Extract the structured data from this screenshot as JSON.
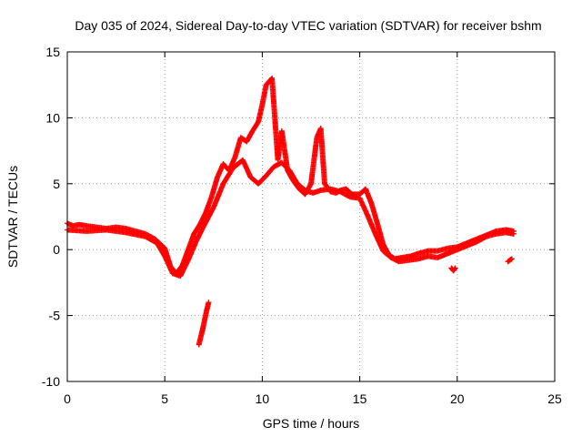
{
  "chart_data": {
    "type": "scatter",
    "title": "Day 035 of 2024, Sidereal Day-to-day VTEC variation (SDTVAR) for receiver bshm",
    "xlabel": "GPS time / hours",
    "ylabel": "SDTVAR / TECUs",
    "xlim": [
      0,
      25
    ],
    "ylim": [
      -10,
      15
    ],
    "xticks": [
      0,
      5,
      10,
      15,
      20,
      25
    ],
    "yticks": [
      -10,
      -5,
      0,
      5,
      10,
      15
    ],
    "grid": true,
    "marker": "+",
    "color": "#ff0000",
    "series": [
      {
        "name": "main",
        "x": [
          0.0,
          0.3,
          0.6,
          1.0,
          1.5,
          2.0,
          2.5,
          3.0,
          3.5,
          4.0,
          4.5,
          5.0,
          5.3,
          5.6,
          5.9,
          6.2,
          6.5,
          6.8,
          7.1,
          7.4,
          7.7,
          8.0,
          8.3,
          8.6,
          8.9,
          9.2,
          9.5,
          9.8,
          10.0,
          10.2,
          10.5,
          10.8,
          11.0,
          11.3,
          11.6,
          11.9,
          12.2,
          12.5,
          12.8,
          13.0,
          13.2,
          13.5,
          13.8,
          14.0,
          14.3,
          14.6,
          15.0,
          15.3,
          15.6,
          15.9,
          16.2,
          16.5,
          16.8,
          17.2,
          17.6,
          18.0,
          18.5,
          19.0,
          19.5,
          20.0,
          20.5,
          21.0,
          21.5,
          22.0,
          22.5,
          22.9
        ],
        "y": [
          2.0,
          1.8,
          1.9,
          1.8,
          1.7,
          1.6,
          1.7,
          1.6,
          1.4,
          1.2,
          0.8,
          0.1,
          -1.3,
          -1.8,
          -1.2,
          0.0,
          1.2,
          1.9,
          2.8,
          4.0,
          5.5,
          6.5,
          6.0,
          7.0,
          8.5,
          8.2,
          9.0,
          9.7,
          11.0,
          12.5,
          13.0,
          6.8,
          9.0,
          6.0,
          5.2,
          4.6,
          4.2,
          5.0,
          8.5,
          9.2,
          5.0,
          4.4,
          4.3,
          4.5,
          4.6,
          4.2,
          4.2,
          4.6,
          3.5,
          2.0,
          0.4,
          -0.4,
          -0.7,
          -0.6,
          -0.5,
          -0.3,
          -0.1,
          -0.1,
          0.1,
          0.2,
          0.5,
          0.8,
          1.1,
          1.4,
          1.5,
          1.4
        ]
      },
      {
        "name": "lower-band",
        "x": [
          0.0,
          1.0,
          2.0,
          3.0,
          4.0,
          4.6,
          5.0,
          5.4,
          5.8,
          6.2,
          6.6,
          7.0,
          7.5,
          8.0,
          8.5,
          9.0,
          9.4,
          9.8,
          10.2,
          10.6,
          11.0,
          11.4,
          11.8,
          12.2,
          12.6,
          13.0,
          13.5,
          14.0,
          14.5,
          15.0,
          15.4,
          15.8,
          16.2,
          16.6,
          17.0,
          17.5,
          18.0,
          18.5,
          19.0,
          19.5,
          20.0,
          20.5,
          21.0,
          21.5,
          22.0,
          22.5,
          22.9
        ],
        "y": [
          1.5,
          1.4,
          1.5,
          1.3,
          1.0,
          0.5,
          -0.5,
          -1.8,
          -2.0,
          -0.8,
          0.6,
          1.8,
          3.2,
          5.0,
          6.2,
          6.8,
          5.5,
          5.0,
          5.6,
          6.3,
          6.6,
          6.0,
          5.0,
          4.5,
          4.3,
          4.5,
          4.6,
          4.4,
          4.0,
          3.9,
          2.6,
          1.2,
          -0.1,
          -0.6,
          -0.9,
          -0.8,
          -0.7,
          -0.5,
          -0.6,
          -0.3,
          0.0,
          0.3,
          0.6,
          1.0,
          1.2,
          1.3,
          1.2
        ]
      },
      {
        "name": "isolated-drop",
        "x": [
          6.75,
          6.85,
          6.95,
          7.05,
          7.15,
          7.25
        ],
        "y": [
          -7.2,
          -6.6,
          -6.0,
          -5.3,
          -4.6,
          -4.0
        ]
      },
      {
        "name": "isolated-dip",
        "x": [
          19.7,
          19.8,
          19.9
        ],
        "y": [
          -1.4,
          -1.6,
          -1.4
        ]
      },
      {
        "name": "isolated-end",
        "x": [
          22.6,
          22.7,
          22.8
        ],
        "y": [
          -0.9,
          -0.8,
          -0.7
        ]
      }
    ]
  }
}
